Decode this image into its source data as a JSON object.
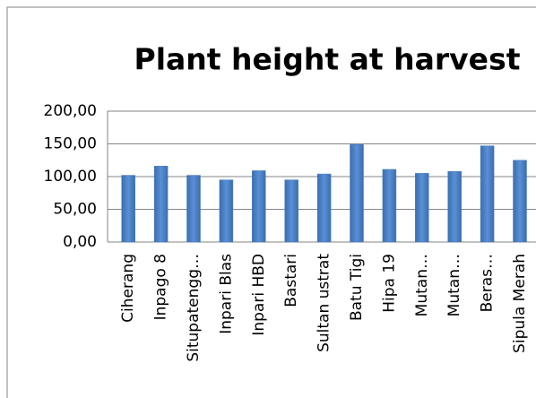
{
  "chart_data": {
    "type": "bar",
    "title": "Plant height at harvest",
    "categories": [
      "Ciherang",
      "Inpago 8",
      "Situpatengg…",
      "Inpari Blas",
      "Inpari HBD",
      "Bastari",
      "Sultan ustrat",
      "Batu Tigi",
      "Hipa 19",
      "Mutan…",
      "Mutan…",
      "Beras…",
      "Sipula Merah"
    ],
    "values": [
      102,
      116,
      102,
      95,
      109,
      95,
      104,
      149,
      111,
      105,
      108,
      147,
      125
    ],
    "color": "#4a7ebb",
    "ylim": [
      0,
      200
    ],
    "yticks": [
      {
        "value": 0,
        "label": "0,00"
      },
      {
        "value": 50,
        "label": "50,00"
      },
      {
        "value": 100,
        "label": "100,00"
      },
      {
        "value": 150,
        "label": "150,00"
      },
      {
        "value": 200,
        "label": "200,00"
      }
    ],
    "grid": true
  }
}
